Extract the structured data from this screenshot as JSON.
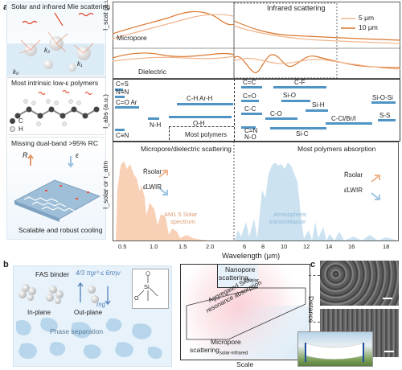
{
  "panel_a": {
    "letter": "a",
    "left_col": {
      "box1_title": "Solar and infrared Mie scattering",
      "k2": "k₂",
      "k1": "k₁",
      "k0": "k₀",
      "box2_title": "Most intrinsic low-ε polymers",
      "legend_c": "C",
      "legend_h": "H",
      "box3_title": "Missing dual-band >95% RC",
      "R": "R",
      "eps": "ε",
      "box3_caption": "Scalable and robust cooling"
    },
    "scatter_plot": {
      "ylabel": "I_scat (a.u.)",
      "label_micropore": "Micropore",
      "label_dielectric": "Dielectric",
      "region_label": "Infrared scattering",
      "legend": [
        "5 μm",
        "10 μm"
      ],
      "colors": {
        "s5": "#f2b58c",
        "s10": "#d9772f"
      }
    },
    "bond_plot": {
      "ylabel": "I_abs (a.u.)",
      "bonds": [
        {
          "text": "C=S"
        },
        {
          "text": "N≡N"
        },
        {
          "text": "C=O Ar"
        },
        {
          "text": "C≡N"
        },
        {
          "text": "N-H"
        },
        {
          "text": "C-H Ar-H"
        },
        {
          "text": "O-H"
        },
        {
          "text": "C=C"
        },
        {
          "text": "C=O"
        },
        {
          "text": "C-C"
        },
        {
          "text": "C=N"
        },
        {
          "text": "N-O"
        },
        {
          "text": "C-F"
        },
        {
          "text": "Si-O"
        },
        {
          "text": "Si-H"
        },
        {
          "text": "C-O"
        },
        {
          "text": "Si-C"
        },
        {
          "text": "C-Cl/Br/I"
        },
        {
          "text": "Si-O-Si"
        },
        {
          "text": "S-S"
        }
      ],
      "most_polymers": "Most polymers"
    },
    "spectrum_plot": {
      "ylabel": "I_solar or τ_atm",
      "left_title": "Micropore/dielectric scattering",
      "right_title": "Most polymers absorption",
      "r_solar_up": "R̄solar",
      "eps_lwir_up": "ε̄LWIR",
      "r_solar_down": "R̄solar",
      "eps_lwir_down": "ε̄LWIR",
      "am15_line1": "AM1.5 Solar",
      "am15_line2": "spectrum",
      "atm_line1": "Atmospheric",
      "atm_line2": "transmittance",
      "x_ticks": [
        "0.5",
        "1.0",
        "1.5",
        "2.0",
        "6",
        "8",
        "10",
        "12",
        "14",
        "16",
        "18"
      ],
      "xlabel": "Wavelength (μm)"
    }
  },
  "panel_b": {
    "letter": "b",
    "fas_binder": "FAS binder",
    "formula": "4/3 πgr³ ≤ 6πηv",
    "mg": "mg",
    "si_label": "Si",
    "o_label": "O",
    "in_plane": "In-plane",
    "out_plane": "Out-plane",
    "phase_separation": "Phase separation",
    "nanopore": "Nanopore",
    "nanopore_sub": "scattering",
    "nanopore_subscript": "solar",
    "aggregated_line1": "Aggregated SiO₂",
    "aggregated_line2": "resonance absorption",
    "micropore": "Micropore",
    "micropore_sub": "scattering",
    "micropore_subscript": "solar-infrared",
    "xlabel": "Scale",
    "ylabel": "Distance"
  },
  "panel_c": {
    "letter": "c"
  }
}
